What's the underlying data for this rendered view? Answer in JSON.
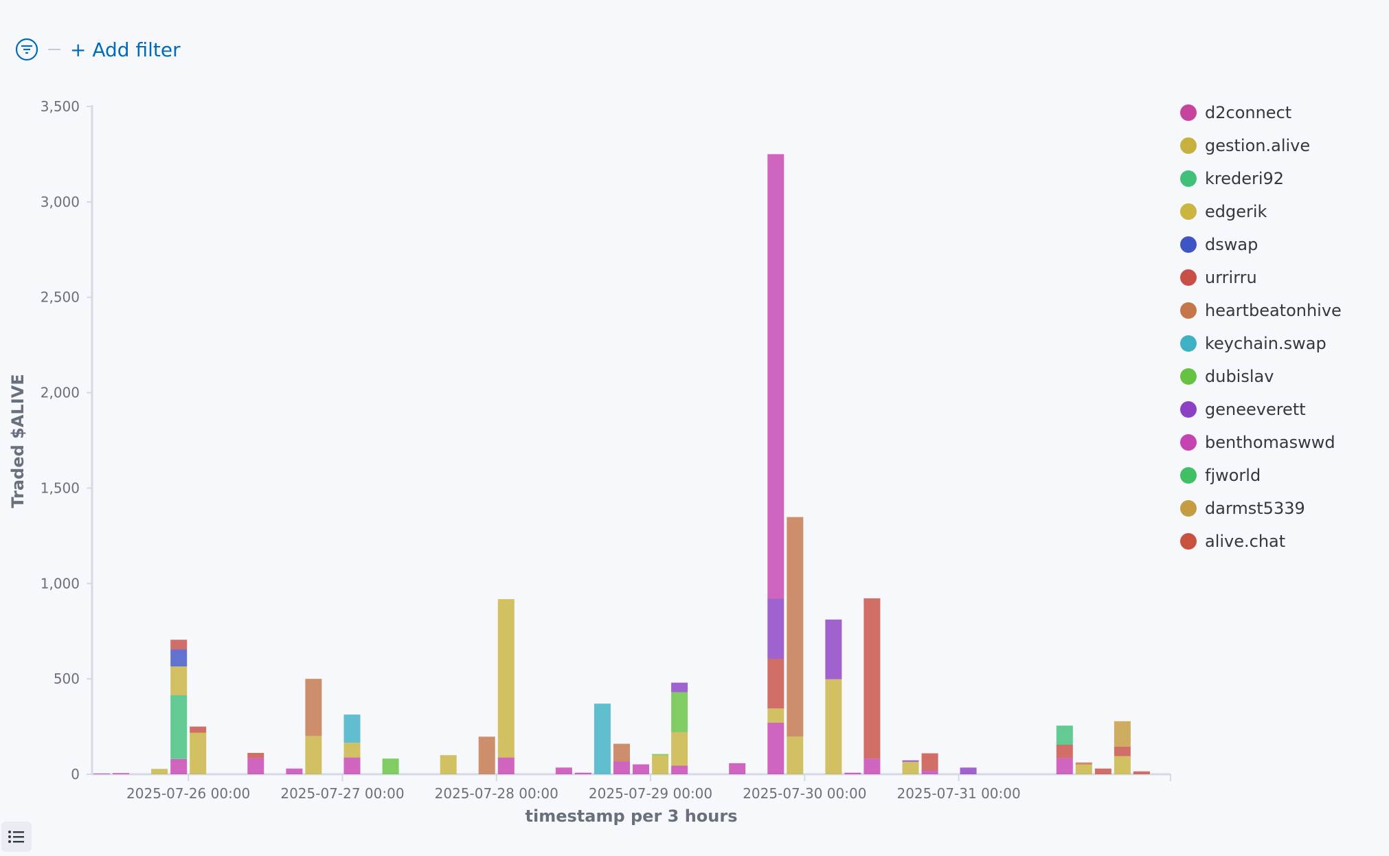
{
  "filter_bar": {
    "add_filter_label": "+ Add filter"
  },
  "chart_data": {
    "type": "bar",
    "stacked": true,
    "title": "",
    "xlabel": "timestamp per 3 hours",
    "ylabel": "Traded $ALIVE",
    "ylim": [
      0,
      3500
    ],
    "yticks": [
      0,
      500,
      1000,
      1500,
      2000,
      2500,
      3000,
      3500
    ],
    "ytick_labels": [
      "0",
      "500",
      "1,000",
      "1,500",
      "2,000",
      "2,500",
      "3,000",
      "3,500"
    ],
    "xtick_labels": [
      "2025-07-26 00:00",
      "2025-07-27 00:00",
      "2025-07-28 00:00",
      "2025-07-29 00:00",
      "2025-07-30 00:00",
      "2025-07-31 00:00"
    ],
    "xtick_slots": [
      5,
      13,
      21,
      29,
      37,
      45
    ],
    "slot_count": 56,
    "grid": false,
    "legend_position": "right",
    "series": [
      {
        "name": "d2connect",
        "color": "#c6449b"
      },
      {
        "name": "gestion.alive",
        "color": "#c8b03f"
      },
      {
        "name": "krederi92",
        "color": "#41c07a"
      },
      {
        "name": "edgerik",
        "color": "#c9b540"
      },
      {
        "name": "dswap",
        "color": "#4055c5"
      },
      {
        "name": "urrirru",
        "color": "#c84f45"
      },
      {
        "name": "heartbeatonhive",
        "color": "#c5764a"
      },
      {
        "name": "keychain.swap",
        "color": "#3fb1c4"
      },
      {
        "name": "dubislav",
        "color": "#66c341"
      },
      {
        "name": "geneeverett",
        "color": "#8c41c4"
      },
      {
        "name": "benthomaswwd",
        "color": "#c644b1"
      },
      {
        "name": "fjworld",
        "color": "#40c064"
      },
      {
        "name": "darmst5339",
        "color": "#c49c41"
      },
      {
        "name": "alive.chat",
        "color": "#c9523f"
      }
    ],
    "bars": [
      {
        "slot": 0,
        "segments": [
          [
            "benthomaswwd",
            4
          ]
        ]
      },
      {
        "slot": 1,
        "segments": [
          [
            "benthomaswwd",
            6
          ]
        ]
      },
      {
        "slot": 3,
        "segments": [
          [
            "edgerik",
            28
          ]
        ]
      },
      {
        "slot": 4,
        "segments": [
          [
            "benthomaswwd",
            80
          ],
          [
            "krederi92",
            335
          ],
          [
            "edgerik",
            150
          ],
          [
            "dswap",
            90
          ],
          [
            "urrirru",
            50
          ]
        ]
      },
      {
        "slot": 5,
        "segments": [
          [
            "edgerik",
            218
          ],
          [
            "urrirru",
            32
          ]
        ]
      },
      {
        "slot": 8,
        "segments": [
          [
            "benthomaswwd",
            85
          ],
          [
            "urrirru",
            27
          ]
        ]
      },
      {
        "slot": 10,
        "segments": [
          [
            "benthomaswwd",
            30
          ]
        ]
      },
      {
        "slot": 11,
        "segments": [
          [
            "edgerik",
            200
          ],
          [
            "heartbeatonhive",
            300
          ]
        ]
      },
      {
        "slot": 13,
        "segments": [
          [
            "benthomaswwd",
            88
          ],
          [
            "edgerik",
            77
          ],
          [
            "keychain.swap",
            148
          ]
        ]
      },
      {
        "slot": 15,
        "segments": [
          [
            "dubislav",
            82
          ]
        ]
      },
      {
        "slot": 18,
        "segments": [
          [
            "edgerik",
            100
          ]
        ]
      },
      {
        "slot": 20,
        "segments": [
          [
            "heartbeatonhive",
            197
          ]
        ]
      },
      {
        "slot": 21,
        "segments": [
          [
            "benthomaswwd",
            88
          ],
          [
            "edgerik",
            830
          ]
        ]
      },
      {
        "slot": 24,
        "segments": [
          [
            "benthomaswwd",
            35
          ]
        ]
      },
      {
        "slot": 25,
        "segments": [
          [
            "benthomaswwd",
            8
          ]
        ]
      },
      {
        "slot": 26,
        "segments": [
          [
            "keychain.swap",
            370
          ]
        ]
      },
      {
        "slot": 27,
        "segments": [
          [
            "benthomaswwd",
            68
          ],
          [
            "heartbeatonhive",
            92
          ]
        ]
      },
      {
        "slot": 28,
        "segments": [
          [
            "benthomaswwd",
            52
          ]
        ]
      },
      {
        "slot": 29,
        "segments": [
          [
            "edgerik",
            100
          ],
          [
            "dubislav",
            6
          ]
        ]
      },
      {
        "slot": 30,
        "segments": [
          [
            "benthomaswwd",
            45
          ],
          [
            "edgerik",
            175
          ],
          [
            "dubislav",
            210
          ],
          [
            "geneeverett",
            50
          ]
        ]
      },
      {
        "slot": 33,
        "segments": [
          [
            "benthomaswwd",
            58
          ]
        ]
      },
      {
        "slot": 35,
        "segments": [
          [
            "benthomaswwd",
            270
          ],
          [
            "edgerik",
            75
          ],
          [
            "urrirru",
            260
          ],
          [
            "geneeverett",
            315
          ],
          [
            "benthomaswwd",
            2330
          ]
        ]
      },
      {
        "slot": 36,
        "segments": [
          [
            "edgerik",
            198
          ],
          [
            "heartbeatonhive",
            1150
          ]
        ]
      },
      {
        "slot": 38,
        "segments": [
          [
            "edgerik",
            498
          ],
          [
            "geneeverett",
            313
          ]
        ]
      },
      {
        "slot": 39,
        "segments": [
          [
            "benthomaswwd",
            8
          ]
        ]
      },
      {
        "slot": 40,
        "segments": [
          [
            "benthomaswwd",
            82
          ],
          [
            "urrirru",
            840
          ]
        ]
      },
      {
        "slot": 42,
        "segments": [
          [
            "edgerik",
            65
          ],
          [
            "geneeverett",
            8
          ]
        ]
      },
      {
        "slot": 43,
        "segments": [
          [
            "benthomaswwd",
            20
          ],
          [
            "urrirru",
            90
          ]
        ]
      },
      {
        "slot": 45,
        "segments": [
          [
            "geneeverett",
            35
          ]
        ]
      },
      {
        "slot": 50,
        "segments": [
          [
            "benthomaswwd",
            85
          ],
          [
            "urrirru",
            70
          ],
          [
            "krederi92",
            100
          ]
        ]
      },
      {
        "slot": 51,
        "segments": [
          [
            "edgerik",
            50
          ],
          [
            "heartbeatonhive",
            12
          ]
        ]
      },
      {
        "slot": 52,
        "segments": [
          [
            "urrirru",
            30
          ]
        ]
      },
      {
        "slot": 53,
        "segments": [
          [
            "edgerik",
            95
          ],
          [
            "urrirru",
            50
          ],
          [
            "darmst5339",
            133
          ]
        ]
      },
      {
        "slot": 54,
        "segments": [
          [
            "urrirru",
            15
          ]
        ]
      }
    ]
  }
}
